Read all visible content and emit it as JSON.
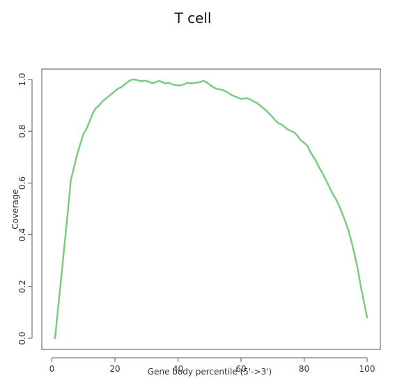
{
  "chart_data": {
    "type": "line",
    "title": "T cell",
    "xlabel": "Gene body percentile (5'->3')",
    "ylabel": "Coverage",
    "xlim": [
      1,
      100
    ],
    "ylim": [
      0,
      1
    ],
    "xticks": [
      0,
      20,
      40,
      60,
      80,
      100
    ],
    "yticks": [
      0.0,
      0.2,
      0.4,
      0.6,
      0.8,
      1.0
    ],
    "xtick_labels": [
      "0",
      "20",
      "40",
      "60",
      "80",
      "100"
    ],
    "ytick_labels": [
      "0.0",
      "0.2",
      "0.4",
      "0.6",
      "0.8",
      "1.0"
    ],
    "grid": false,
    "series": [
      {
        "color": "#7ccc7f",
        "x": [
          1,
          2,
          3,
          4,
          5,
          6,
          7,
          8,
          9,
          10,
          11,
          12,
          13,
          14,
          15,
          16,
          17,
          18,
          19,
          20,
          21,
          22,
          23,
          24,
          25,
          26,
          27,
          28,
          29,
          30,
          31,
          32,
          33,
          34,
          35,
          36,
          37,
          38,
          39,
          40,
          41,
          42,
          43,
          44,
          45,
          46,
          47,
          48,
          49,
          50,
          51,
          52,
          53,
          54,
          55,
          56,
          57,
          58,
          59,
          60,
          61,
          62,
          63,
          64,
          65,
          66,
          67,
          68,
          69,
          70,
          71,
          72,
          73,
          74,
          75,
          76,
          77,
          78,
          79,
          80,
          81,
          82,
          83,
          84,
          85,
          86,
          87,
          88,
          89,
          90,
          91,
          92,
          93,
          94,
          95,
          96,
          97,
          98,
          99,
          100
        ],
        "y": [
          0.0,
          0.12,
          0.24,
          0.36,
          0.48,
          0.61,
          0.66,
          0.71,
          0.75,
          0.79,
          0.81,
          0.84,
          0.87,
          0.89,
          0.9,
          0.915,
          0.925,
          0.935,
          0.945,
          0.955,
          0.965,
          0.97,
          0.98,
          0.99,
          0.998,
          1.0,
          0.998,
          0.993,
          0.995,
          0.995,
          0.99,
          0.985,
          0.99,
          0.995,
          0.99,
          0.985,
          0.988,
          0.982,
          0.979,
          0.977,
          0.978,
          0.982,
          0.988,
          0.985,
          0.986,
          0.988,
          0.99,
          0.995,
          0.99,
          0.98,
          0.972,
          0.965,
          0.962,
          0.96,
          0.955,
          0.948,
          0.94,
          0.935,
          0.93,
          0.925,
          0.927,
          0.928,
          0.922,
          0.915,
          0.91,
          0.9,
          0.89,
          0.88,
          0.868,
          0.855,
          0.84,
          0.83,
          0.825,
          0.815,
          0.805,
          0.8,
          0.795,
          0.78,
          0.765,
          0.755,
          0.745,
          0.72,
          0.7,
          0.68,
          0.655,
          0.635,
          0.61,
          0.585,
          0.56,
          0.54,
          0.515,
          0.485,
          0.455,
          0.42,
          0.375,
          0.325,
          0.27,
          0.2,
          0.14,
          0.08
        ]
      }
    ]
  }
}
